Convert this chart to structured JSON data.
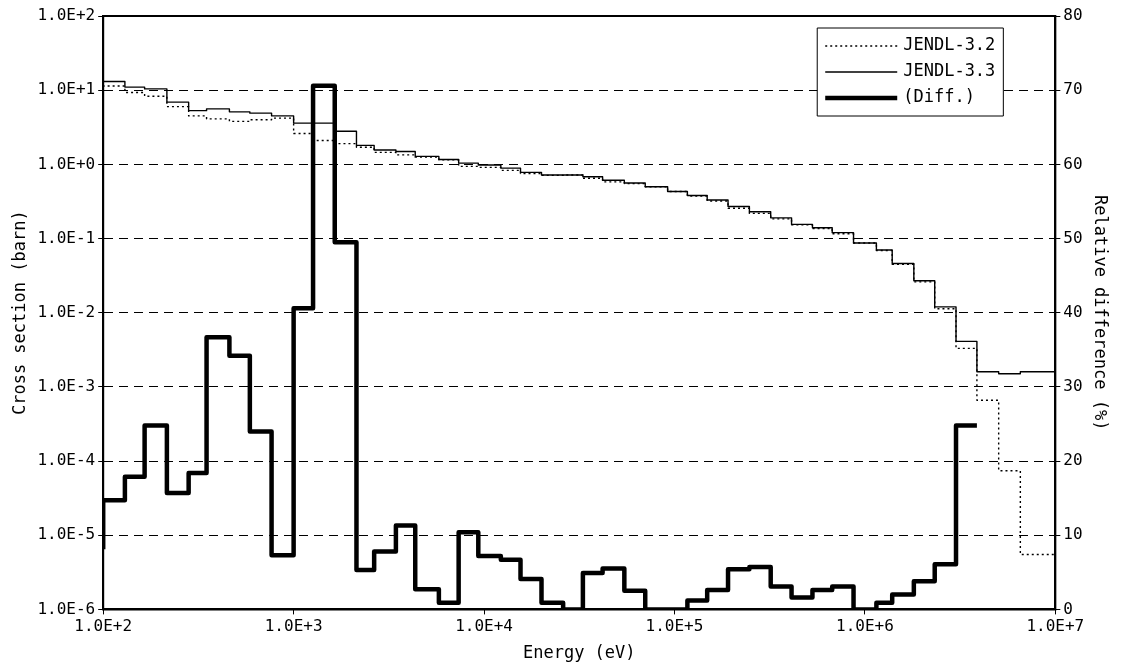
{
  "chart_data": {
    "type": "step",
    "xlabel": "Energy (eV)",
    "ylabel": "Cross section (barn)",
    "y2label": "Relative difference (%)",
    "log": "xy",
    "x": [
      100,
      130,
      165,
      216,
      281,
      349,
      460,
      589,
      766,
      1000,
      1265,
      1644,
      2138,
      2648,
      3444,
      4351,
      5791,
      7355,
      9328,
      12250,
      15540,
      20030,
      26020,
      33040,
      41930,
      54540,
      70210,
      92050,
      116900,
      148500,
      191100,
      247400,
      320100,
      411900,
      530300,
      673400,
      871500,
      1149000,
      1391000,
      1807000,
      2326000,
      3009000,
      3874000,
      5040000,
      6550000,
      8315000,
      10000000
    ],
    "xlim": [
      100,
      10000000
    ],
    "xticks": [
      {
        "value": 100,
        "label": "1.0E+2"
      },
      {
        "value": 1000,
        "label": "1.0E+3"
      },
      {
        "value": 10000,
        "label": "1.0E+4"
      },
      {
        "value": 100000,
        "label": "1.0E+5"
      },
      {
        "value": 1000000,
        "label": "1.0E+6"
      },
      {
        "value": 10000000,
        "label": "1.0E+7"
      }
    ],
    "ylim": [
      1e-06,
      100
    ],
    "yticks": [
      {
        "value": 1e-06,
        "label": "1.0E-6"
      },
      {
        "value": 1e-05,
        "label": "1.0E-5"
      },
      {
        "value": 0.0001,
        "label": "1.0E-4"
      },
      {
        "value": 0.001,
        "label": "1.0E-3"
      },
      {
        "value": 0.01,
        "label": "1.0E-2"
      },
      {
        "value": 0.1,
        "label": "1.0E-1"
      },
      {
        "value": 1,
        "label": "1.0E+0"
      },
      {
        "value": 10,
        "label": "1.0E+1"
      },
      {
        "value": 100,
        "label": "1.0E+2"
      }
    ],
    "y2lim": [
      0,
      80
    ],
    "y2ticks": [
      0,
      10,
      20,
      30,
      40,
      50,
      60,
      70,
      80
    ],
    "grid": "y",
    "legend": "top right",
    "series": [
      {
        "name": "JENDL-3.2",
        "color": "#000000",
        "line_style": "dotted",
        "values": [
          11.2,
          11.4,
          9.3,
          8.3,
          6.0,
          4.5,
          4.1,
          3.8,
          4.0,
          4.2,
          2.6,
          2.1,
          1.9,
          1.7,
          1.45,
          1.34,
          1.25,
          1.15,
          0.94,
          0.91,
          0.83,
          0.75,
          0.71,
          0.72,
          0.65,
          0.58,
          0.55,
          0.5,
          0.43,
          0.375,
          0.32,
          0.256,
          0.218,
          0.184,
          0.153,
          0.136,
          0.116,
          0.087,
          0.069,
          0.045,
          0.026,
          0.0113,
          0.0033,
          0.00066,
          7.4e-05,
          5.5e-06,
          5.5e-06
        ]
      },
      {
        "name": "JENDL-3.3",
        "color": "#000000",
        "line_style": "solid",
        "values": [
          12.1,
          13.1,
          11.0,
          10.4,
          6.9,
          5.3,
          5.6,
          5.1,
          4.9,
          4.5,
          3.6,
          3.6,
          2.8,
          1.8,
          1.56,
          1.49,
          1.28,
          1.16,
          1.04,
          0.98,
          0.89,
          0.78,
          0.72,
          0.72,
          0.68,
          0.61,
          0.56,
          0.5,
          0.43,
          0.38,
          0.33,
          0.27,
          0.23,
          0.19,
          0.155,
          0.14,
          0.12,
          0.087,
          0.07,
          0.046,
          0.027,
          0.012,
          0.0041,
          0.0016,
          0.0015,
          0.0016,
          0.0016
        ]
      },
      {
        "name": "(Diff.)",
        "color": "#000000",
        "line_style": "solid",
        "axis": "y2",
        "values": [
          8.1,
          14.7,
          17.9,
          24.8,
          15.7,
          18.4,
          36.7,
          34.2,
          24.0,
          7.3,
          40.6,
          70.6,
          49.5,
          5.3,
          7.8,
          11.3,
          2.7,
          0.9,
          10.4,
          7.2,
          6.7,
          4.1,
          0.9,
          0,
          4.9,
          5.5,
          2.5,
          0,
          0,
          1.2,
          2.6,
          5.4,
          5.7,
          3.1,
          1.6,
          2.6,
          3.1,
          0,
          0.9,
          2.0,
          3.8,
          6.1,
          24.8,
          null,
          null,
          null,
          null
        ]
      }
    ]
  }
}
